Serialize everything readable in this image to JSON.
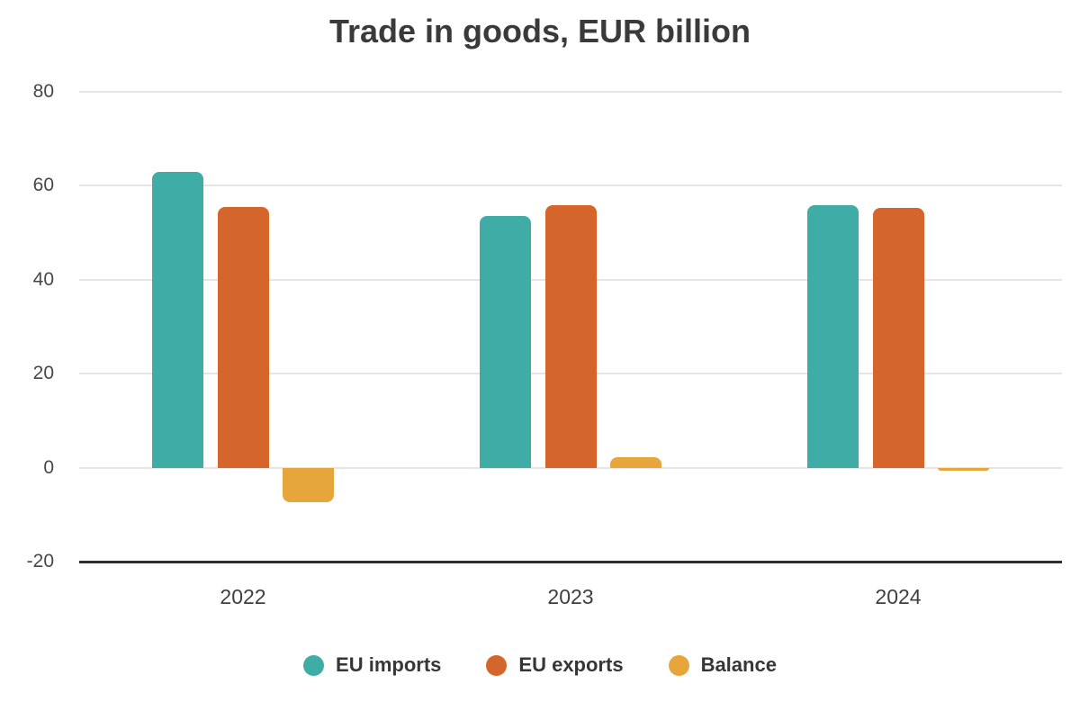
{
  "chart_data": {
    "type": "bar",
    "title": "Trade in goods, EUR billion",
    "categories": [
      "2022",
      "2023",
      "2024"
    ],
    "series": [
      {
        "name": "EU imports",
        "color": "#3fada5",
        "values": [
          62.9,
          53.5,
          55.8
        ]
      },
      {
        "name": "EU exports",
        "color": "#d5662b",
        "values": [
          55.5,
          55.9,
          55.2
        ]
      },
      {
        "name": "Balance",
        "color": "#e7a63c",
        "values": [
          -7.4,
          2.3,
          -0.6
        ]
      }
    ],
    "ylim": [
      -20,
      80
    ],
    "yticks": [
      80,
      60,
      40,
      20,
      0,
      -20
    ],
    "grid": true,
    "legend_position": "bottom",
    "colors": {
      "gridline": "#e5e5e5",
      "axis_line": "#2e2e2e",
      "title_text": "#3a3a3a",
      "tick_text": "#474747"
    }
  }
}
